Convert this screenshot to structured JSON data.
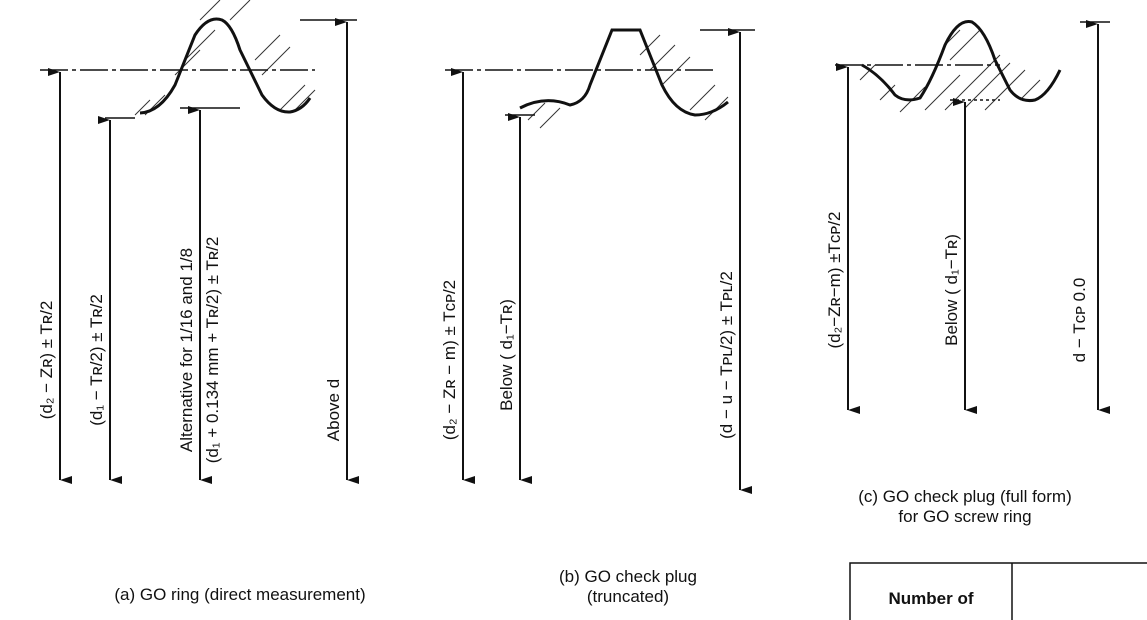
{
  "panels": [
    {
      "labels": [
        "(d₂ − Zʀ) ± Tʀ/2",
        "(d₁ − Tʀ/2) ± Tʀ/2",
        "Alternative for 1/16 and 1/8",
        "(d₁ + 0.134 mm + Tʀ/2) ± Tʀ/2",
        "Above d"
      ],
      "caption": [
        "(a) GO ring (direct measurement)"
      ]
    },
    {
      "labels": [
        "(d₂ − Zʀ − m) ± Tᴄᴘ/2",
        "Below ( d₁−Tʀ)",
        "(d − u − Tᴘʟ/2) ± Tᴘʟ/2"
      ],
      "caption": [
        "(b) GO check plug",
        "(truncated)"
      ]
    },
    {
      "labels": [
        "(d₂−Zʀ−m) ±Tᴄᴘ/2",
        "Below ( d₁−Tʀ)",
        "d − Tᴄᴘ 0.0"
      ],
      "caption": [
        "(c) GO check plug (full form)",
        "for GO screw ring"
      ]
    }
  ],
  "table": {
    "header": "Number of"
  }
}
